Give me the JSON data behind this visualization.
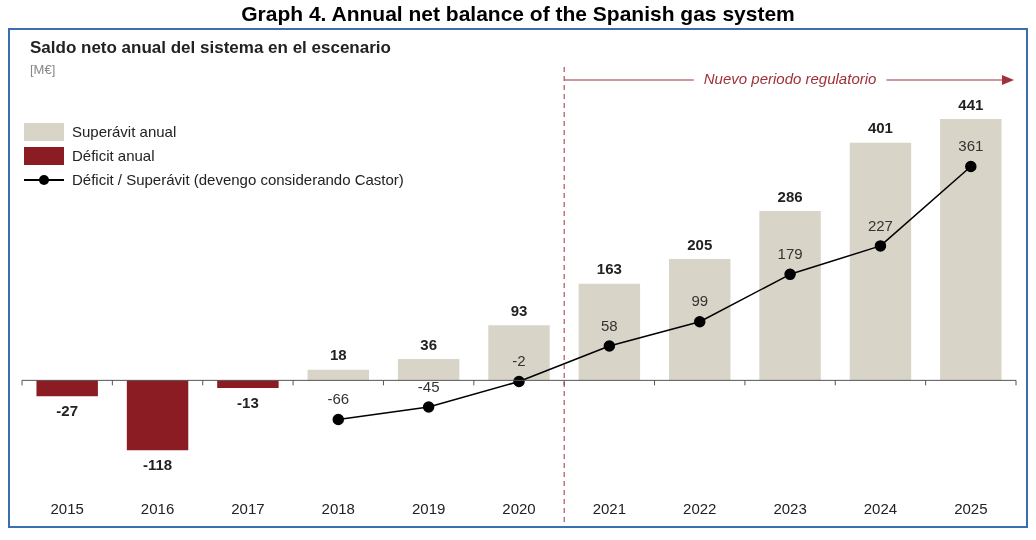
{
  "chart_data": {
    "type": "bar",
    "title": "Graph 4. Annual net balance of the Spanish gas system",
    "subtitle": "Saldo neto anual del sistema en el escenario",
    "ylabel": "[M€]",
    "categories": [
      "2015",
      "2016",
      "2017",
      "2018",
      "2019",
      "2020",
      "2021",
      "2022",
      "2023",
      "2024",
      "2025"
    ],
    "series": [
      {
        "name": "Superávit anual",
        "color": "#d9d4c8",
        "values": [
          null,
          null,
          null,
          18,
          36,
          93,
          163,
          205,
          286,
          401,
          441
        ]
      },
      {
        "name": "Déficit anual",
        "color": "#8c1c24",
        "values": [
          -27,
          -118,
          -13,
          null,
          null,
          null,
          null,
          null,
          null,
          null,
          null
        ]
      },
      {
        "name": "Déficit / Superávit (devengo considerando Castor)",
        "type": "line",
        "color": "#000000",
        "values": [
          null,
          null,
          null,
          -66,
          -45,
          -2,
          58,
          99,
          179,
          227,
          361
        ]
      }
    ],
    "stacked": true,
    "data_labels": true,
    "legend": "top left",
    "marker": "circle",
    "line_style": "solid",
    "grid": false,
    "ref_lines": [
      {
        "axis": "x",
        "value": "2021",
        "label": "Nuevo periodo regulatorio",
        "color": "#a0303a",
        "line_style": "dashed"
      }
    ]
  }
}
